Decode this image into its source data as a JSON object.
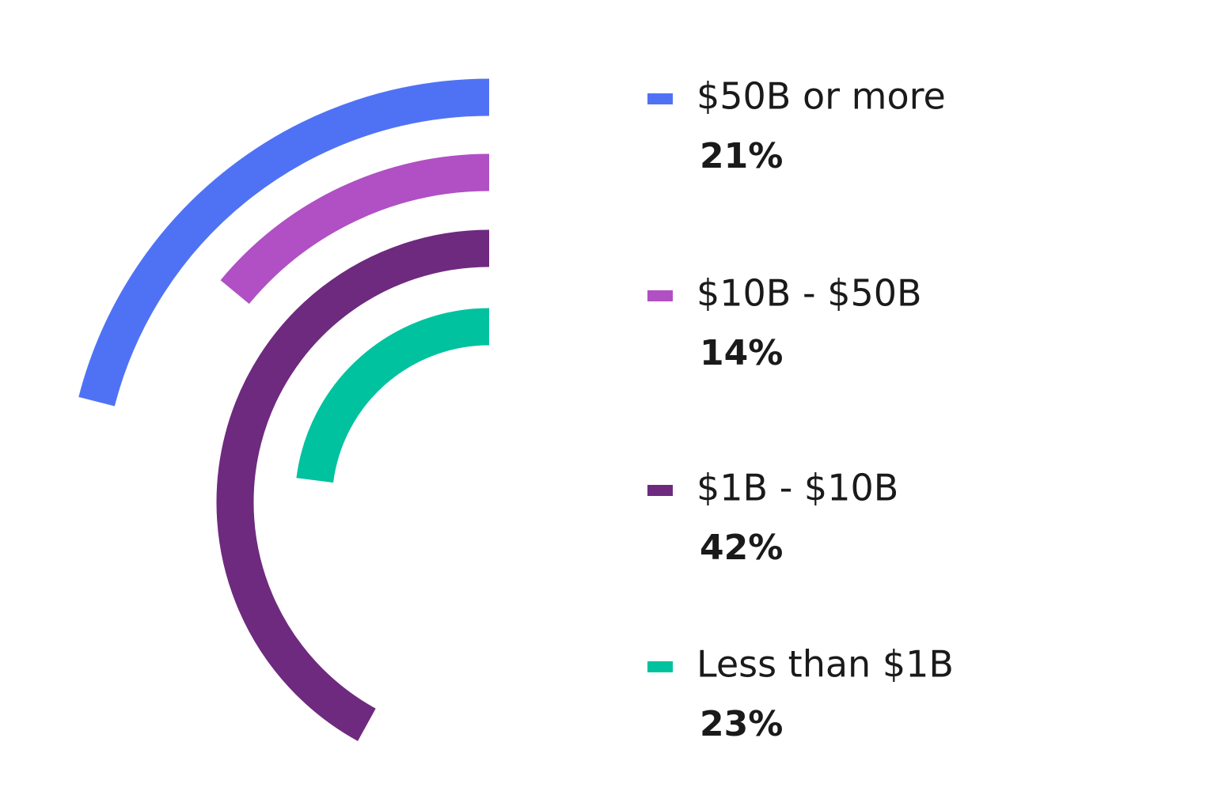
{
  "chart_data": {
    "type": "radial_bar",
    "categories": [
      "$50B or more",
      "$10B - $50B",
      "$1B - $10B",
      "Less than $1B"
    ],
    "values": [
      21,
      14,
      42,
      23
    ],
    "value_labels": [
      "21%",
      "14%",
      "42%",
      "23%"
    ],
    "colors": [
      "#4f72f5",
      "#b050c4",
      "#6e2a7e",
      "#00c29f"
    ],
    "ylim": [
      0,
      100
    ]
  }
}
